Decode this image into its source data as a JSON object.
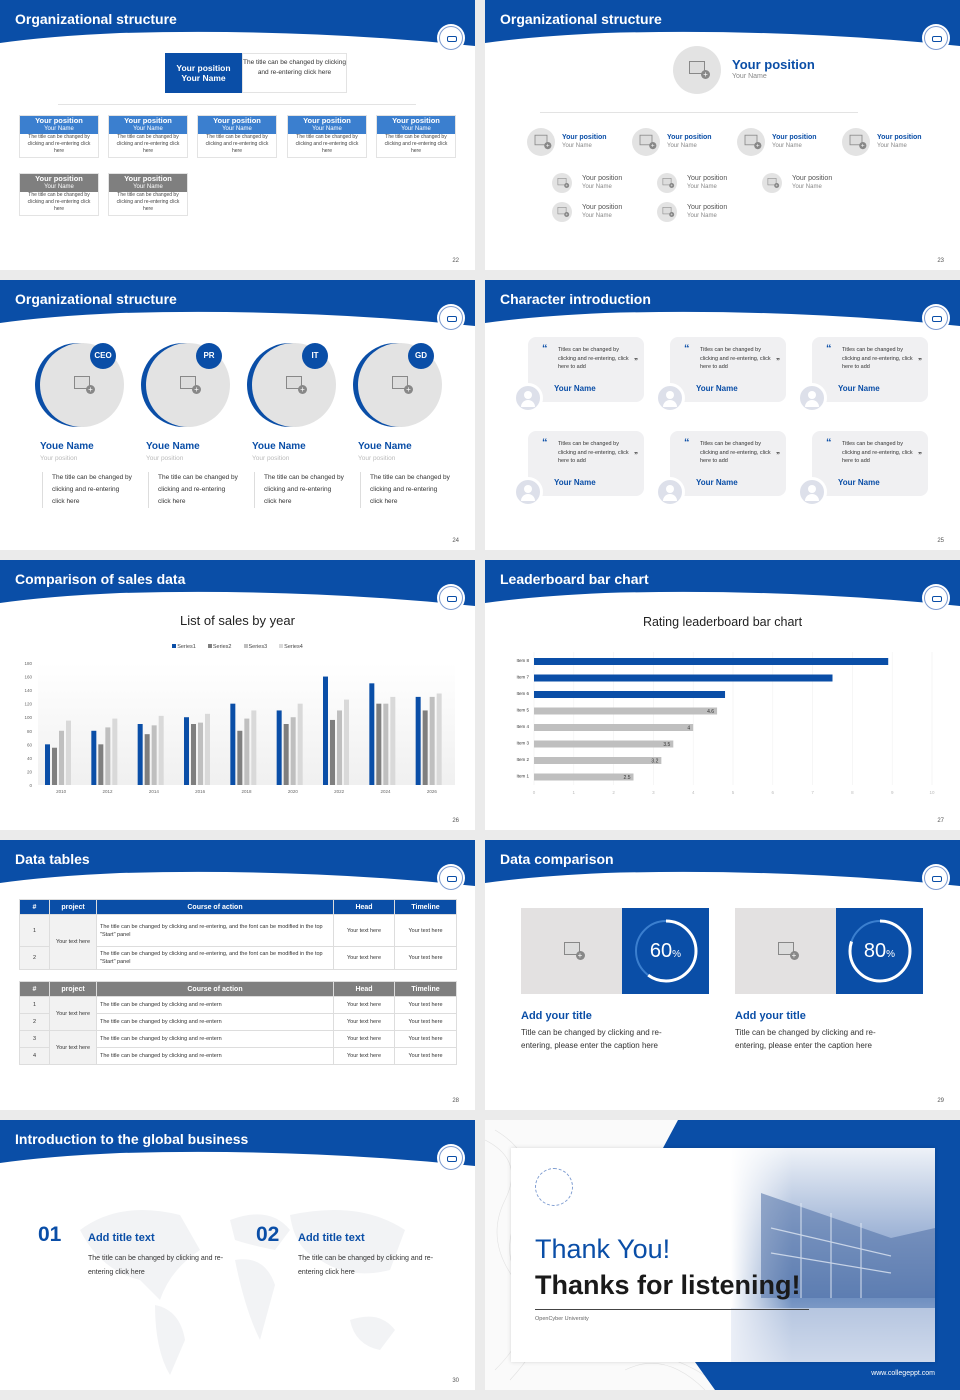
{
  "colors": {
    "primary": "#0a4ea7",
    "mid": "#3b7fcf",
    "gray": "#7f7f7f",
    "light": "#bfbfbf",
    "bg": "#ebebeb"
  },
  "slides": [
    {
      "title": "Organizational structure",
      "page": "22"
    },
    {
      "title": "Organizational structure",
      "page": "23"
    },
    {
      "title": "Organizational structure",
      "page": "24"
    },
    {
      "title": "Character introduction",
      "page": "25"
    },
    {
      "title": "Comparison of sales data",
      "page": "26"
    },
    {
      "title": "Leaderboard bar chart",
      "page": "27"
    },
    {
      "title": "Data tables",
      "page": "28"
    },
    {
      "title": "Data comparison",
      "page": "29"
    },
    {
      "title": "Introduction to the global business",
      "page": "30"
    }
  ],
  "org1": {
    "top": {
      "position": "Your position",
      "name": "Your Name",
      "desc": "The title can be changed by clicking and re-entering click here"
    },
    "boxes": [
      {
        "position": "Your position",
        "name": "Your Name",
        "desc": "The title can be changed by clicking and re-entering click here",
        "tone": "blue"
      },
      {
        "position": "Your position",
        "name": "Your Name",
        "desc": "The title can be changed by clicking and re-entering click here",
        "tone": "blue"
      },
      {
        "position": "Your position",
        "name": "Your Name",
        "desc": "The title can be changed by clicking and re-entering click here",
        "tone": "blue"
      },
      {
        "position": "Your position",
        "name": "Your Name",
        "desc": "The title can be changed by clicking and re-entering click here",
        "tone": "blue"
      },
      {
        "position": "Your position",
        "name": "Your Name",
        "desc": "The title can be changed by clicking and re-entering click here",
        "tone": "blue"
      },
      {
        "position": "Your position",
        "name": "Your Name",
        "desc": "The title can be changed by clicking and re-entering click here",
        "tone": "gray"
      },
      {
        "position": "Your position",
        "name": "Your Name",
        "desc": "The title can be changed by clicking and re-entering click here",
        "tone": "gray"
      }
    ]
  },
  "org2": {
    "top": {
      "position": "Your position",
      "name": "Your Name"
    },
    "level2": [
      {
        "position": "Your position",
        "name": "Your Name"
      },
      {
        "position": "Your position",
        "name": "Your Name"
      },
      {
        "position": "Your position",
        "name": "Your Name"
      },
      {
        "position": "Your position",
        "name": "Your Name"
      }
    ],
    "level3": [
      {
        "position": "Your position",
        "name": "Your Name"
      },
      {
        "position": "Your position",
        "name": "Your Name"
      },
      {
        "position": "Your position",
        "name": "Your Name"
      },
      {
        "position": "Your position",
        "name": "Your Name"
      },
      {
        "position": "Your position",
        "name": "Your Name"
      }
    ]
  },
  "team": [
    {
      "badge": "CEO",
      "name": "Youe Name",
      "position": "Your position",
      "desc": "The title can be changed by clicking and re-entering click here"
    },
    {
      "badge": "PR",
      "name": "Youe Name",
      "position": "Your position",
      "desc": "The title can be changed by clicking and re-entering click here"
    },
    {
      "badge": "IT",
      "name": "Youe Name",
      "position": "Your position",
      "desc": "The title can be changed by clicking and re-entering click here"
    },
    {
      "badge": "GD",
      "name": "Youe Name",
      "position": "Your position",
      "desc": "The title can be changed by clicking and re-entering click here"
    }
  ],
  "characters": [
    {
      "quote": "Titles can be changed by clicking and re-entering, click here to add",
      "name": "Your Name"
    },
    {
      "quote": "Titles can be changed by clicking and re-entering, click here to add",
      "name": "Your Name"
    },
    {
      "quote": "Titles can be changed by clicking and re-entering, click here to add",
      "name": "Your Name"
    },
    {
      "quote": "Titles can be changed by clicking and re-entering, click here to add",
      "name": "Your Name"
    },
    {
      "quote": "Titles can be changed by clicking and re-entering, click here to add",
      "name": "Your Name"
    },
    {
      "quote": "Titles can be changed by clicking and re-entering, click here to add",
      "name": "Your Name"
    }
  ],
  "quote_marks": {
    "open": "“",
    "close": "”"
  },
  "chart_data": [
    {
      "type": "bar",
      "title": "List of sales by year",
      "categories": [
        "2010",
        "2012",
        "2014",
        "2016",
        "2018",
        "2020",
        "2022",
        "2024",
        "2026"
      ],
      "series": [
        {
          "name": "Series1",
          "color": "#0a4ea7",
          "values": [
            60,
            80,
            90,
            100,
            120,
            110,
            160,
            150,
            130
          ]
        },
        {
          "name": "Series2",
          "color": "#7f7f7f",
          "values": [
            55,
            60,
            75,
            90,
            80,
            90,
            96,
            120,
            110
          ]
        },
        {
          "name": "Series3",
          "color": "#bfbfbf",
          "values": [
            80,
            85,
            88,
            92,
            98,
            100,
            110,
            120,
            130
          ]
        },
        {
          "name": "Series4",
          "color": "#d9d9d9",
          "values": [
            95,
            98,
            102,
            105,
            110,
            120,
            126,
            130,
            135
          ]
        }
      ],
      "ylim": [
        0,
        180
      ],
      "yticks": [
        0,
        20,
        40,
        60,
        80,
        100,
        120,
        140,
        160,
        180
      ],
      "grid": false,
      "legend": "top"
    },
    {
      "type": "bar",
      "orientation": "horizontal",
      "title": "Rating leaderboard bar chart",
      "categories": [
        "Item 8",
        "Item 7",
        "Item 6",
        "Item 5",
        "Item 4",
        "Item 3",
        "Item 2",
        "Item 1"
      ],
      "values": [
        8.9,
        7.5,
        4.8,
        4.6,
        4,
        3.5,
        3.2,
        2.5
      ],
      "data_labels": [
        "",
        "",
        "",
        "4.6",
        "4",
        "3.5",
        "3.2",
        "2.5"
      ],
      "highlight_color": "#0a4ea7",
      "base_color": "#bfbfbf",
      "xlim": [
        0,
        10
      ],
      "xticks": [
        "0",
        "1",
        "2",
        "3",
        "4",
        "5",
        "6",
        "7",
        "8",
        "9",
        "10"
      ],
      "grid": true
    }
  ],
  "tables": [
    {
      "headers": [
        "#",
        "project",
        "Course of action",
        "Head",
        "Timeline"
      ],
      "project": "Your text here",
      "rows": [
        [
          "1",
          "The title can be changed by clicking and re-entering, and the font can be modified in the top \"Start\" panel",
          "Your text here",
          "Your text here"
        ],
        [
          "2",
          "The title can be changed by clicking and re-entering, and the font can be modified in the top \"Start\" panel",
          "Your text here",
          "Your text here"
        ]
      ]
    },
    {
      "headers": [
        "#",
        "project",
        "Course of action",
        "Head",
        "Timeline"
      ],
      "projects": [
        "Your text here",
        "Your text here"
      ],
      "rows": [
        [
          "1",
          "The title can be changed by clicking and re-entern",
          "Your text here",
          "Your text here"
        ],
        [
          "2",
          "The title can be changed by clicking and re-entern",
          "Your text here",
          "Your text here"
        ],
        [
          "3",
          "The title can be changed by clicking and re-entern",
          "Your text here",
          "Your text here"
        ],
        [
          "4",
          "The title can be changed by clicking and re-entern",
          "Your text here",
          "Your text here"
        ]
      ]
    }
  ],
  "comparison": [
    {
      "value": 60,
      "value_label": "60",
      "unit": "%",
      "title": "Add your title",
      "desc": "Title can be changed by clicking and re-entering, please enter the caption here"
    },
    {
      "value": 80,
      "value_label": "80",
      "unit": "%",
      "title": "Add your title",
      "desc": "Title can be changed by clicking and re-entering, please enter the caption here"
    }
  ],
  "global": [
    {
      "num": "01",
      "title": "Add title text",
      "desc": "The title can be changed by clicking and re-entering click here"
    },
    {
      "num": "02",
      "title": "Add title text",
      "desc": "The title can be changed by clicking and re-entering click here"
    }
  ],
  "thanks": {
    "line1": "Thank You!",
    "line2": "Thanks for listening!",
    "org": "OpenCyber University",
    "url": "www.collegeppt.com"
  }
}
